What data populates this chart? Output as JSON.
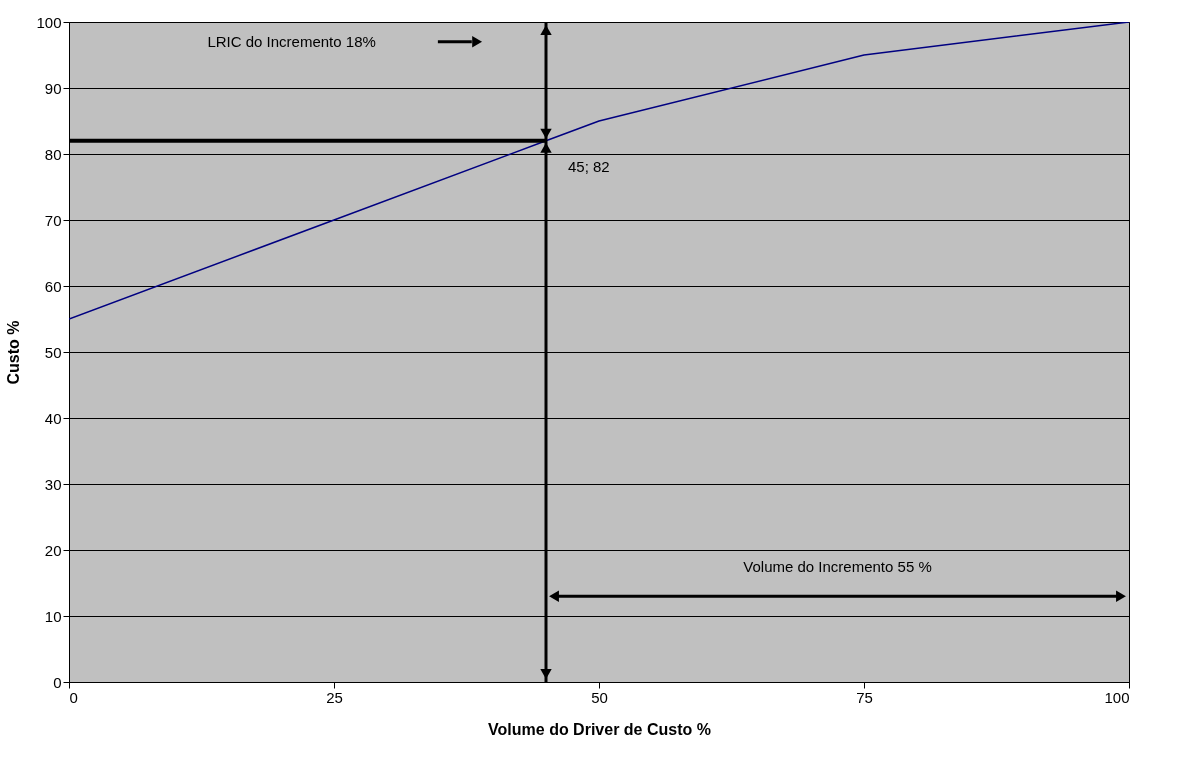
{
  "chart_data": {
    "type": "line",
    "xlabel": "Volume do Driver de Custo %",
    "ylabel": "Custo %",
    "xlim": [
      0,
      100
    ],
    "xticks": [
      0,
      25,
      50,
      75,
      100
    ],
    "ylim": [
      0,
      100
    ],
    "yticks": [
      0,
      10,
      20,
      30,
      40,
      50,
      60,
      70,
      80,
      90,
      100
    ],
    "grid": "y",
    "series": [
      {
        "color": "#000080",
        "x": [
          0,
          25,
          45,
          50,
          75,
          100
        ],
        "values": [
          55,
          70,
          82,
          85,
          95,
          100
        ]
      },
      {
        "color": "#000000",
        "x": [
          0,
          45
        ],
        "values": [
          82,
          82
        ]
      }
    ],
    "ref_lines": [
      {
        "axis": "x",
        "value": 45,
        "color": "#000000"
      }
    ],
    "annotations": [
      "LRIC do Incremento 18%",
      {
        "text": "45; 82",
        "x": 45,
        "y": 82
      },
      "Volume do Incremento 55 %"
    ]
  }
}
